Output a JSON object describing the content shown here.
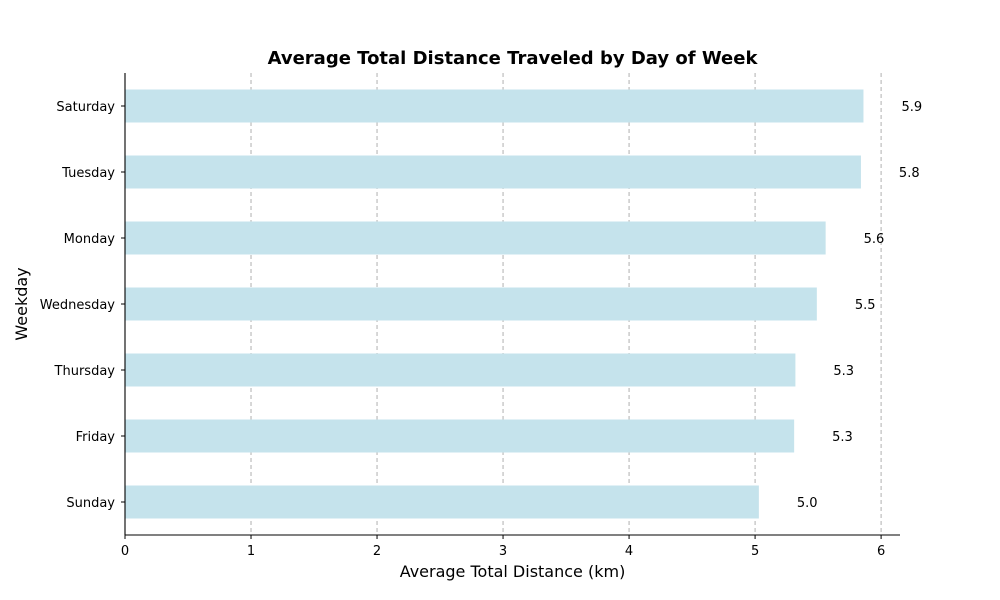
{
  "chart_data": {
    "type": "bar",
    "orientation": "horizontal",
    "title": "Average Total Distance Traveled by Day of Week",
    "xlabel": "Average Total Distance (km)",
    "ylabel": "Weekday",
    "categories": [
      "Saturday",
      "Tuesday",
      "Monday",
      "Wednesday",
      "Thursday",
      "Friday",
      "Sunday"
    ],
    "values": [
      5.86,
      5.84,
      5.56,
      5.49,
      5.32,
      5.31,
      5.03
    ],
    "data_labels": [
      "5.9",
      "5.8",
      "5.6",
      "5.5",
      "5.3",
      "5.3",
      "5.0"
    ],
    "xlim": [
      0,
      6.15
    ],
    "xticks": [
      0,
      1,
      2,
      3,
      4,
      5,
      6
    ],
    "grid": "x-dashed",
    "bar_color": "#c5e3ec"
  }
}
